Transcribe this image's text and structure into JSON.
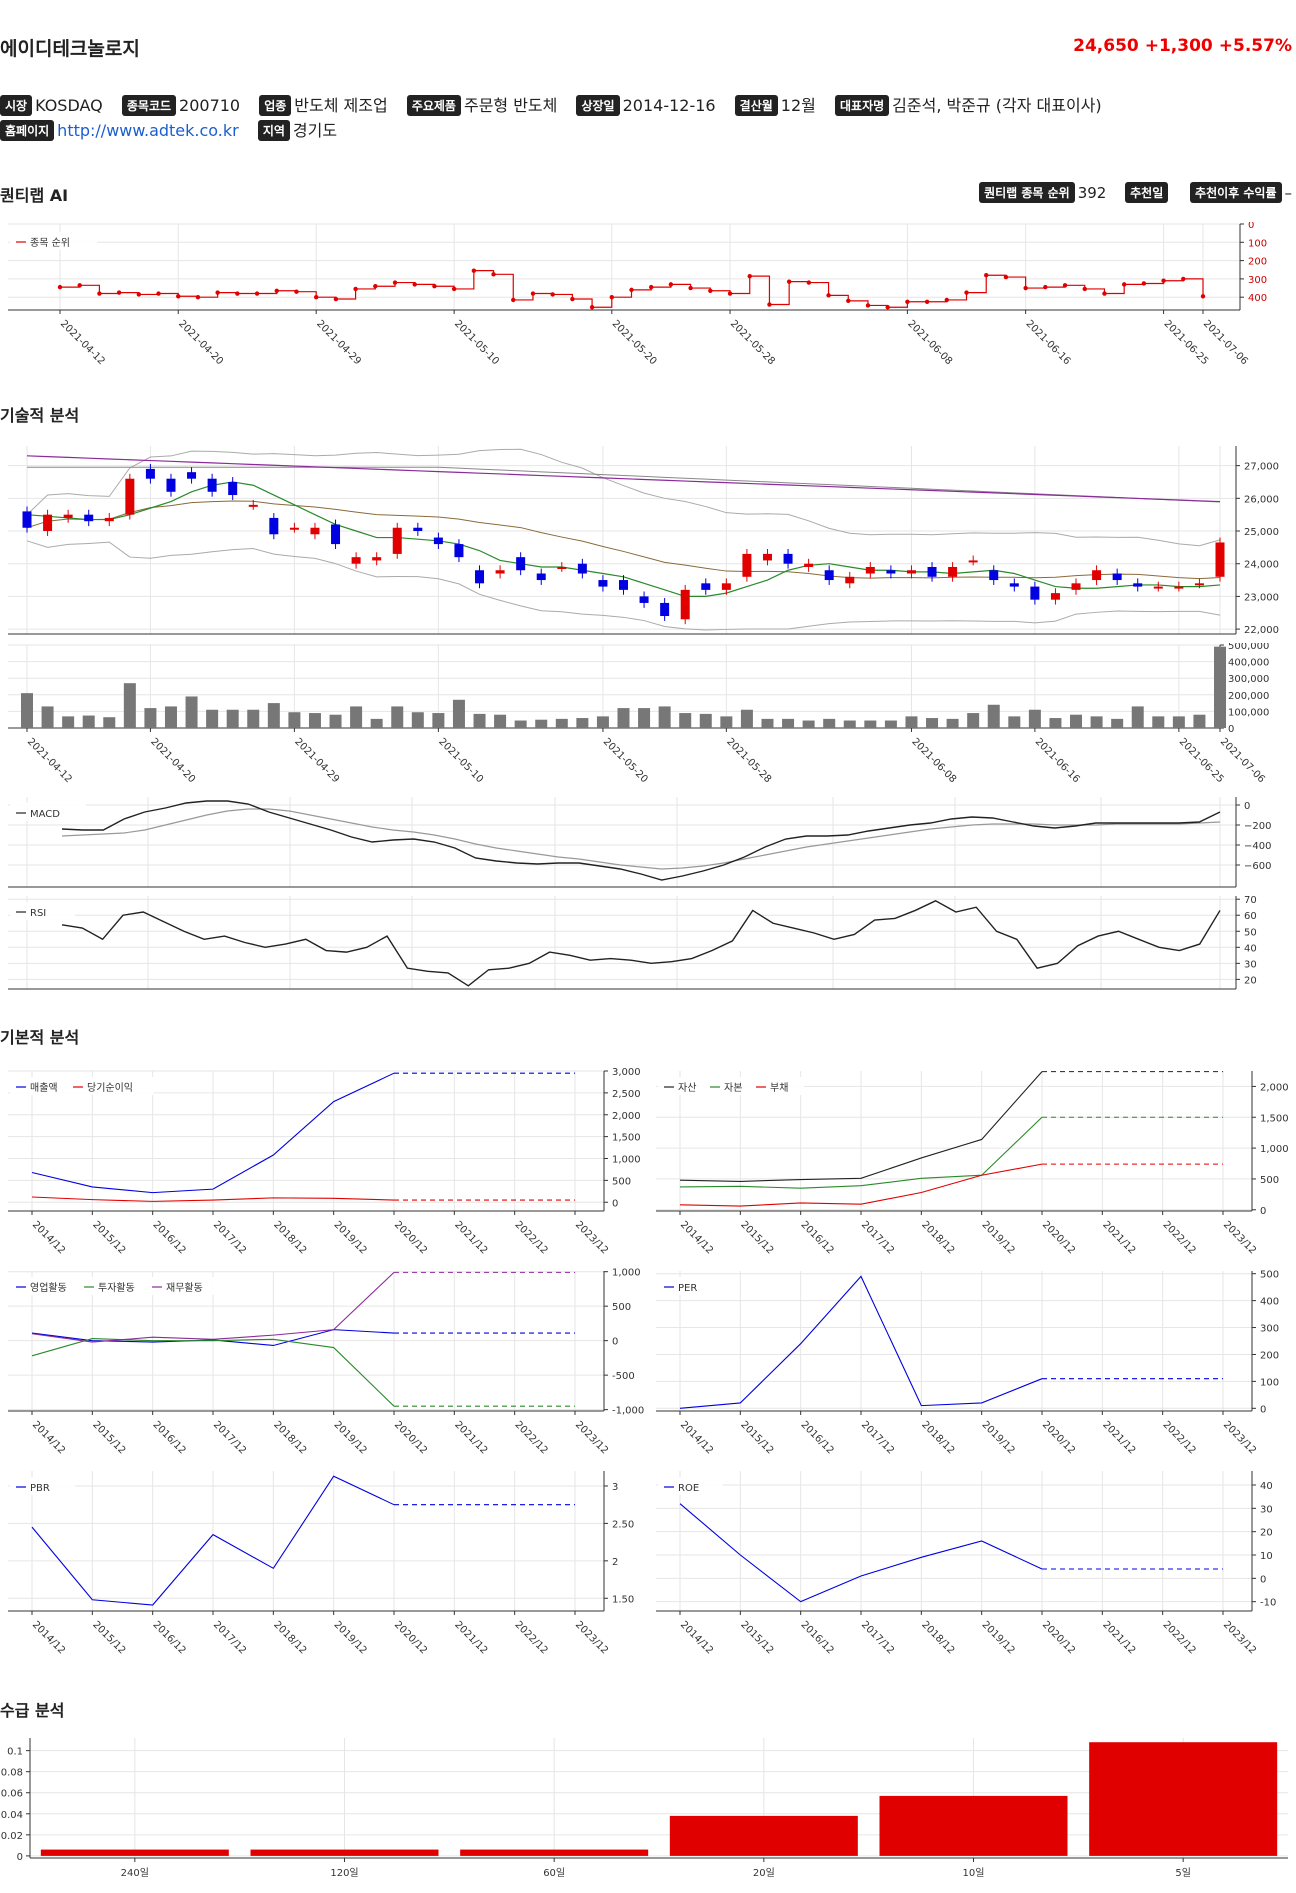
{
  "header": {
    "name": "에이디테크놀로지",
    "price": "24,650",
    "change": "+1,300",
    "change_pct": "+5.57%"
  },
  "info": {
    "row1": [
      {
        "label": "시장",
        "value": "KOSDAQ"
      },
      {
        "label": "종목코드",
        "value": "200710"
      },
      {
        "label": "업종",
        "value": "반도체 제조업"
      },
      {
        "label": "주요제품",
        "value": "주문형 반도체"
      },
      {
        "label": "상장일",
        "value": "2014-12-16"
      },
      {
        "label": "결산월",
        "value": "12월"
      },
      {
        "label": "대표자명",
        "value": "김준석, 박준규 (각자 대표이사)"
      }
    ],
    "homepage": {
      "label": "홈페이지",
      "value": "http://www.adtek.co.kr"
    },
    "region": {
      "label": "지역",
      "value": "경기도"
    }
  },
  "sections": {
    "ai": "퀀티랩 AI",
    "tech": "기술적 분석",
    "fund": "기본적 분석",
    "supply": "수급 분석"
  },
  "ai_info": [
    {
      "label": "퀀티랩 종목 순위",
      "value": "392"
    },
    {
      "label": "추천일",
      "value": ""
    },
    {
      "label": "추천이후 수익률",
      "value": "–"
    }
  ],
  "colors": {
    "red": "#e00000",
    "blue": "#0000e0",
    "green": "#2a8a2a",
    "purple": "#8b2a9a",
    "volume": "#777777"
  },
  "chart_data": [
    {
      "id": "rank",
      "type": "line",
      "legend": [
        "종목 순위"
      ],
      "x_ticks": [
        "2021-04-12",
        "2021-04-20",
        "2021-04-29",
        "2021-05-10",
        "2021-05-20",
        "2021-05-28",
        "2021-06-08",
        "2021-06-16",
        "2021-06-25",
        "2021-07-06"
      ],
      "y_ticks": [
        "0",
        "100",
        "200",
        "300",
        "400"
      ],
      "ylim": [
        0,
        470
      ],
      "y_inverted": true,
      "values": [
        345,
        335,
        380,
        375,
        385,
        380,
        395,
        400,
        375,
        380,
        380,
        365,
        370,
        400,
        410,
        355,
        340,
        320,
        330,
        340,
        355,
        255,
        275,
        415,
        380,
        385,
        410,
        455,
        400,
        360,
        345,
        330,
        350,
        365,
        380,
        285,
        440,
        315,
        320,
        390,
        420,
        445,
        455,
        425,
        425,
        415,
        375,
        280,
        290,
        350,
        345,
        335,
        355,
        380,
        330,
        325,
        310,
        300,
        395
      ]
    },
    {
      "id": "price",
      "type": "candlestick",
      "x_ticks": [
        "2021-04-12",
        "2021-04-20",
        "2021-04-29",
        "2021-05-10",
        "2021-05-20",
        "2021-05-28",
        "2021-06-08",
        "2021-06-16",
        "2021-06-25",
        "2021-07-06"
      ],
      "y_ticks": [
        "22,000",
        "23,000",
        "24,000",
        "25,000",
        "26,000",
        "27,000"
      ],
      "ylim": [
        21850,
        27600
      ],
      "candles": [
        [
          25600,
          25100
        ],
        [
          25000,
          25500
        ],
        [
          25400,
          25500
        ],
        [
          25500,
          25300
        ],
        [
          25300,
          25400
        ],
        [
          25500,
          26600
        ],
        [
          26900,
          26600
        ],
        [
          26600,
          26200
        ],
        [
          26800,
          26600
        ],
        [
          26600,
          26200
        ],
        [
          26500,
          26100
        ],
        [
          25800,
          25800
        ],
        [
          25400,
          24900
        ],
        [
          25100,
          25100
        ],
        [
          24900,
          25100
        ],
        [
          25200,
          24600
        ],
        [
          24000,
          24200
        ],
        [
          24100,
          24200
        ],
        [
          24300,
          25100
        ],
        [
          25100,
          25000
        ],
        [
          24800,
          24600
        ],
        [
          24600,
          24200
        ],
        [
          23800,
          23400
        ],
        [
          23700,
          23800
        ],
        [
          24200,
          23800
        ],
        [
          23700,
          23500
        ],
        [
          23900,
          23900
        ],
        [
          24000,
          23700
        ],
        [
          23500,
          23300
        ],
        [
          23500,
          23200
        ],
        [
          23000,
          22800
        ],
        [
          22800,
          22400
        ],
        [
          22300,
          23200
        ],
        [
          23400,
          23200
        ],
        [
          23200,
          23400
        ],
        [
          23600,
          24300
        ],
        [
          24100,
          24300
        ],
        [
          24300,
          24000
        ],
        [
          23900,
          24000
        ],
        [
          23800,
          23500
        ],
        [
          23400,
          23600
        ],
        [
          23700,
          23900
        ],
        [
          23800,
          23700
        ],
        [
          23700,
          23800
        ],
        [
          23900,
          23600
        ],
        [
          23600,
          23900
        ],
        [
          24100,
          24100
        ],
        [
          23800,
          23500
        ],
        [
          23400,
          23300
        ],
        [
          23300,
          22900
        ],
        [
          22900,
          23100
        ],
        [
          23200,
          23400
        ],
        [
          23500,
          23800
        ],
        [
          23700,
          23500
        ],
        [
          23400,
          23300
        ],
        [
          23300,
          23300
        ],
        [
          23300,
          23300
        ],
        [
          23400,
          23400
        ],
        [
          23600,
          24650
        ]
      ],
      "ma_short_values": [
        25500,
        25450,
        25400,
        25350,
        25350,
        25500,
        25700,
        25900,
        26200,
        26400,
        26500,
        26400,
        26100,
        25800,
        25500,
        25200,
        25000,
        24800,
        24800,
        24750,
        24700,
        24600,
        24400,
        24100,
        24000,
        23900,
        23900,
        23800,
        23700,
        23600,
        23400,
        23200,
        23000,
        23000,
        23100,
        23300,
        23500,
        23800,
        23950,
        24000,
        23900,
        23800,
        23800,
        23750,
        23750,
        23700,
        23750,
        23800,
        23700,
        23500,
        23300,
        23250,
        23250,
        23300,
        23350,
        23350,
        23300,
        23300,
        23350
      ]
    },
    {
      "id": "volume",
      "type": "bar",
      "y_ticks": [
        "0",
        "100,000",
        "200,000",
        "300,000",
        "400,000",
        "500,000"
      ],
      "ylim": [
        0,
        500000
      ],
      "values": [
        210000,
        130000,
        70000,
        75000,
        65000,
        270000,
        120000,
        130000,
        190000,
        110000,
        110000,
        110000,
        150000,
        95000,
        90000,
        80000,
        130000,
        55000,
        130000,
        95000,
        90000,
        170000,
        85000,
        80000,
        45000,
        50000,
        55000,
        60000,
        70000,
        120000,
        120000,
        130000,
        90000,
        85000,
        70000,
        110000,
        55000,
        55000,
        45000,
        55000,
        45000,
        45000,
        45000,
        70000,
        60000,
        55000,
        90000,
        140000,
        70000,
        110000,
        60000,
        80000,
        70000,
        55000,
        130000,
        70000,
        70000,
        80000,
        490000
      ]
    },
    {
      "id": "macd",
      "type": "line",
      "legend": [
        "MACD"
      ],
      "y_ticks": [
        "0",
        "−200",
        "−400",
        "−600"
      ],
      "ylim": [
        -820,
        80
      ],
      "values": [
        -240,
        -250,
        -250,
        -140,
        -70,
        -30,
        20,
        40,
        40,
        10,
        -70,
        -130,
        -190,
        -250,
        -320,
        -370,
        -350,
        -340,
        -370,
        -430,
        -530,
        -560,
        -580,
        -590,
        -580,
        -580,
        -610,
        -640,
        -690,
        -750,
        -710,
        -660,
        -600,
        -520,
        -420,
        -340,
        -310,
        -310,
        -300,
        -260,
        -230,
        -200,
        -180,
        -140,
        -120,
        -130,
        -170,
        -210,
        -230,
        -210,
        -180,
        -180,
        -180,
        -180,
        -180,
        -170,
        -70
      ],
      "signal_values": [
        -310,
        -300,
        -290,
        -280,
        -250,
        -200,
        -150,
        -100,
        -60,
        -40,
        -40,
        -60,
        -100,
        -140,
        -180,
        -220,
        -250,
        -270,
        -300,
        -340,
        -390,
        -430,
        -460,
        -490,
        -520,
        -540,
        -570,
        -600,
        -620,
        -640,
        -630,
        -610,
        -580,
        -540,
        -500,
        -460,
        -420,
        -390,
        -360,
        -330,
        -300,
        -270,
        -240,
        -220,
        -200,
        -190,
        -190,
        -190,
        -200,
        -200,
        -200,
        -190,
        -190,
        -190,
        -190,
        -180,
        -170
      ]
    },
    {
      "id": "rsi",
      "type": "line",
      "legend": [
        "RSI"
      ],
      "y_ticks": [
        "20",
        "30",
        "40",
        "50",
        "60",
        "70"
      ],
      "ylim": [
        14,
        72
      ],
      "values": [
        54,
        52,
        45,
        60,
        62,
        56,
        50,
        45,
        47,
        43,
        40,
        42,
        45,
        38,
        37,
        40,
        47,
        27,
        25,
        24,
        16,
        26,
        27,
        30,
        37,
        35,
        32,
        33,
        32,
        30,
        31,
        33,
        38,
        44,
        63,
        55,
        52,
        49,
        45,
        48,
        57,
        58,
        63,
        69,
        62,
        65,
        50,
        45,
        27,
        30,
        41,
        47,
        50,
        45,
        40,
        38,
        42,
        63
      ]
    },
    {
      "id": "revenue",
      "type": "line",
      "legend": [
        "매출액",
        "당기순이익"
      ],
      "categories": [
        "2014/12",
        "2015/12",
        "2016/12",
        "2017/12",
        "2018/12",
        "2019/12",
        "2020/12",
        "2021/12",
        "2022/12",
        "2023/12"
      ],
      "y_ticks": [
        "0",
        "500",
        "1,000",
        "1,500",
        "2,000",
        "2,500",
        "3,000"
      ],
      "ylim": [
        -200,
        3000
      ],
      "series": [
        {
          "name": "매출액",
          "values": [
            680,
            350,
            220,
            300,
            1080,
            2300,
            2950,
            null,
            null,
            null
          ]
        },
        {
          "name": "당기순이익",
          "values": [
            120,
            60,
            20,
            50,
            100,
            90,
            50,
            null,
            null,
            null
          ]
        }
      ]
    },
    {
      "id": "balance",
      "type": "line",
      "legend": [
        "자산",
        "자본",
        "부채"
      ],
      "categories": [
        "2014/12",
        "2015/12",
        "2016/12",
        "2017/12",
        "2018/12",
        "2019/12",
        "2020/12",
        "2021/12",
        "2022/12",
        "2023/12"
      ],
      "y_ticks": [
        "0",
        "500",
        "1,000",
        "1,500",
        "2,000"
      ],
      "ylim": [
        -20,
        2250
      ],
      "series": [
        {
          "name": "자산",
          "values": [
            480,
            460,
            490,
            510,
            840,
            1140,
            2240,
            null,
            null,
            null
          ]
        },
        {
          "name": "자본",
          "values": [
            370,
            380,
            350,
            390,
            510,
            560,
            1500,
            null,
            null,
            null
          ]
        },
        {
          "name": "부채",
          "values": [
            80,
            60,
            110,
            90,
            280,
            560,
            740,
            null,
            null,
            null
          ]
        }
      ]
    },
    {
      "id": "cashflow",
      "type": "line",
      "legend": [
        "영업활동",
        "투자활동",
        "재무활동"
      ],
      "categories": [
        "2014/12",
        "2015/12",
        "2016/12",
        "2017/12",
        "2018/12",
        "2019/12",
        "2020/12",
        "2021/12",
        "2022/12",
        "2023/12"
      ],
      "y_ticks": [
        "1,000",
        "500",
        "0",
        "-500",
        "-1,000"
      ],
      "ylim": [
        -1020,
        1010
      ],
      "series": [
        {
          "name": "영업활동",
          "values": [
            110,
            0,
            -20,
            10,
            -70,
            160,
            110,
            null,
            null,
            null
          ]
        },
        {
          "name": "투자활동",
          "values": [
            -220,
            30,
            0,
            0,
            20,
            -100,
            -950,
            null,
            null,
            null
          ]
        },
        {
          "name": "재무활동",
          "values": [
            100,
            -20,
            50,
            20,
            80,
            160,
            990,
            null,
            null,
            null
          ]
        }
      ]
    },
    {
      "id": "per",
      "type": "line",
      "legend": [
        "PER"
      ],
      "categories": [
        "2014/12",
        "2015/12",
        "2016/12",
        "2017/12",
        "2018/12",
        "2019/12",
        "2020/12",
        "2021/12",
        "2022/12",
        "2023/12"
      ],
      "y_ticks": [
        "0",
        "100",
        "200",
        "300",
        "400",
        "500"
      ],
      "ylim": [
        -10,
        510
      ],
      "series": [
        {
          "name": "PER",
          "values": [
            0,
            20,
            240,
            490,
            10,
            20,
            110,
            null,
            null,
            null
          ]
        }
      ]
    },
    {
      "id": "pbr",
      "type": "line",
      "legend": [
        "PBR"
      ],
      "categories": [
        "2014/12",
        "2015/12",
        "2016/12",
        "2017/12",
        "2018/12",
        "2019/12",
        "2020/12",
        "2021/12",
        "2022/12",
        "2023/12"
      ],
      "y_ticks": [
        "1.50",
        "2",
        "2.50",
        "3"
      ],
      "ylim": [
        1.33,
        3.2
      ],
      "series": [
        {
          "name": "PBR",
          "values": [
            2.45,
            1.48,
            1.41,
            2.35,
            1.9,
            3.13,
            2.75,
            null,
            null,
            null
          ]
        }
      ]
    },
    {
      "id": "roe",
      "type": "line",
      "legend": [
        "ROE"
      ],
      "categories": [
        "2014/12",
        "2015/12",
        "2016/12",
        "2017/12",
        "2018/12",
        "2019/12",
        "2020/12",
        "2021/12",
        "2022/12",
        "2023/12"
      ],
      "y_ticks": [
        "-10",
        "0",
        "10",
        "20",
        "30",
        "40"
      ],
      "ylim": [
        -14,
        46
      ],
      "series": [
        {
          "name": "ROE",
          "values": [
            32,
            10,
            -10,
            1,
            9,
            16,
            4,
            null,
            null,
            null
          ]
        }
      ]
    },
    {
      "id": "supply",
      "type": "bar",
      "categories": [
        "240일",
        "120일",
        "60일",
        "20일",
        "10일",
        "5일"
      ],
      "values": [
        0.006,
        0.006,
        0.006,
        0.038,
        0.057,
        0.108
      ],
      "y_ticks": [
        "0",
        "0.02",
        "0.04",
        "0.06",
        "0.08",
        "0.1"
      ],
      "ylim": [
        -0.002,
        0.112
      ]
    }
  ]
}
